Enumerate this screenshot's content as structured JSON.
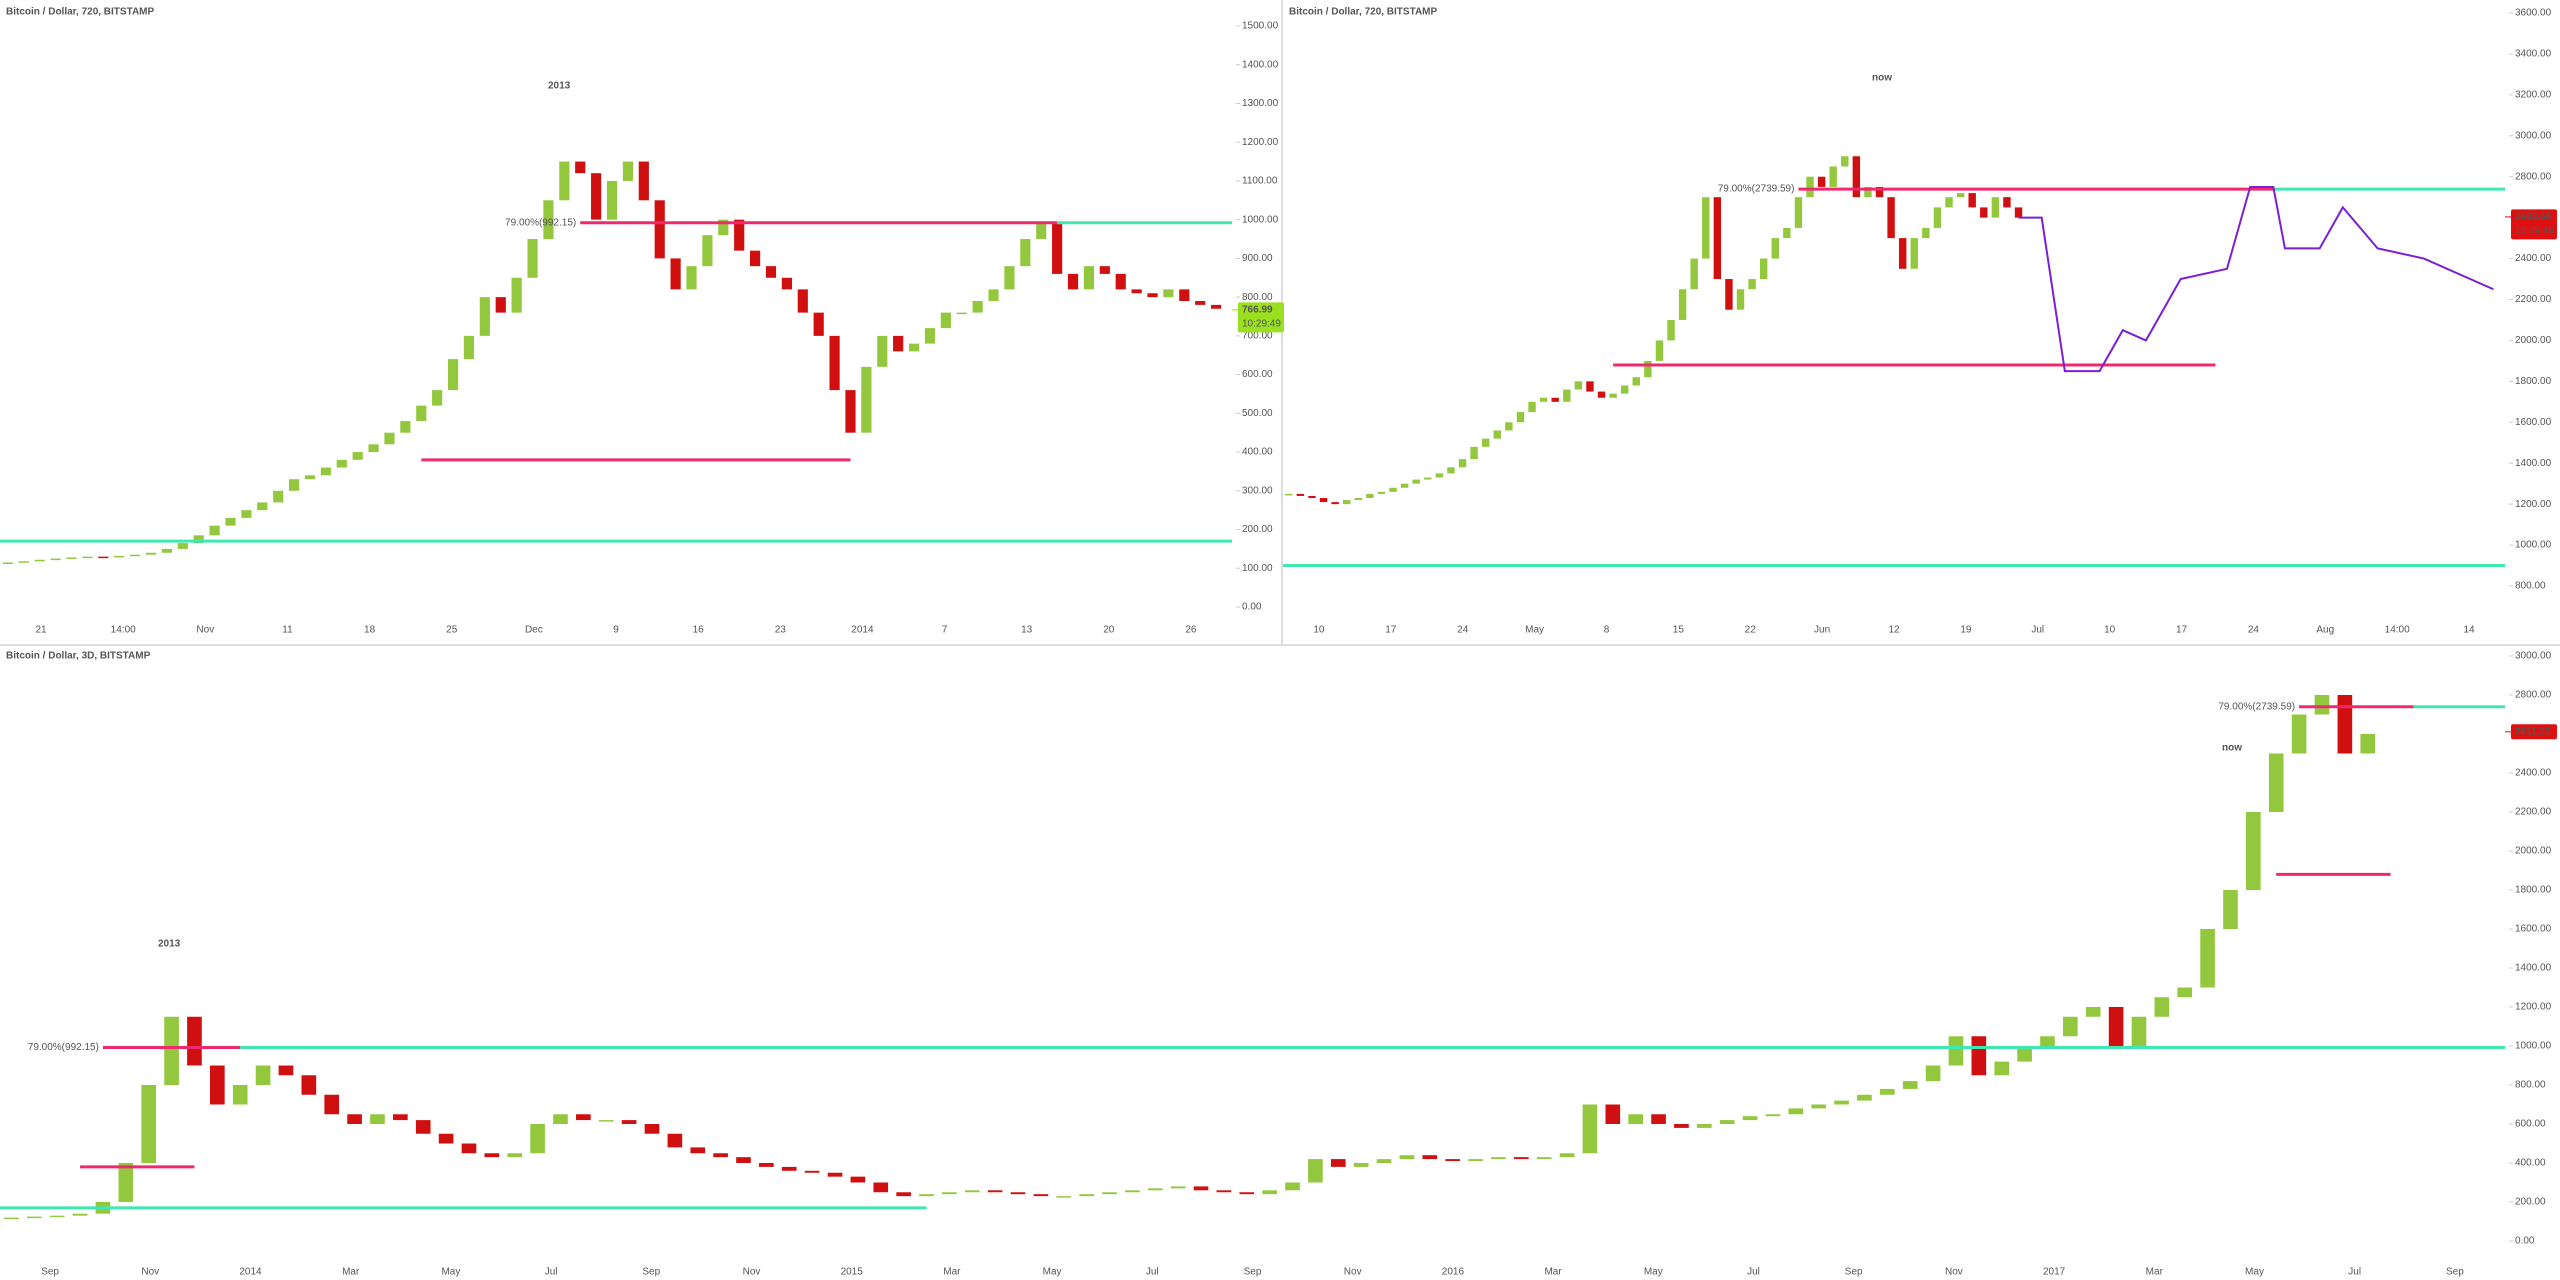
{
  "chart_data": [
    {
      "type": "candlestick",
      "title": "Bitcoin / Dollar, 720, BITSTAMP",
      "up_color": "#93c83e",
      "down_color": "#d01010",
      "values": [
        115,
        118,
        122,
        125,
        128,
        130,
        128,
        132,
        135,
        140,
        150,
        165,
        185,
        210,
        230,
        250,
        270,
        300,
        330,
        340,
        360,
        380,
        400,
        420,
        450,
        480,
        520,
        560,
        640,
        700,
        800,
        760,
        850,
        950,
        1050,
        1150,
        1120,
        1000,
        1100,
        1150,
        1050,
        900,
        820,
        880,
        960,
        1000,
        920,
        880,
        850,
        820,
        760,
        700,
        560,
        450,
        620,
        700,
        660,
        680,
        720,
        760,
        760,
        790,
        820,
        880,
        950,
        990,
        860,
        820,
        880,
        860,
        820,
        810,
        800,
        820,
        790,
        780,
        770
      ],
      "xlim": [
        -0.5,
        77
      ],
      "ylim": [
        0,
        1500
      ],
      "yticks": [
        {
          "value": 0,
          "label": "0.00"
        },
        {
          "value": 100,
          "label": "100.00"
        },
        {
          "value": 200,
          "label": "200.00"
        },
        {
          "value": 300,
          "label": "300.00"
        },
        {
          "value": 400,
          "label": "400.00"
        },
        {
          "value": 500,
          "label": "500.00"
        },
        {
          "value": 600,
          "label": "600.00"
        },
        {
          "value": 700,
          "label": "700.00"
        },
        {
          "value": 800,
          "label": "800.00"
        },
        {
          "value": 900,
          "label": "900.00"
        },
        {
          "value": 1000,
          "label": "1000.00"
        },
        {
          "value": 1100,
          "label": "1100.00"
        },
        {
          "value": 1200,
          "label": "1200.00"
        },
        {
          "value": 1300,
          "label": "1300.00"
        },
        {
          "value": 1400,
          "label": "1400.00"
        },
        {
          "value": 1500,
          "label": "1500.00"
        }
      ],
      "xtick_labels": [
        "21",
        "14:00",
        "Nov",
        "11",
        "18",
        "25",
        "Dec",
        "9",
        "16",
        "23",
        "2014",
        "7",
        "13",
        "20",
        "26"
      ],
      "lines": [
        {
          "value": 992.15,
          "color": "#f0286e",
          "x": [
            36,
            66
          ],
          "label": "79.00%(992.15)"
        },
        {
          "value": 992.15,
          "color": "#3ee8b0",
          "x": [
            66,
            77
          ]
        },
        {
          "value": 380,
          "color": "#f0286e",
          "x": [
            26,
            53
          ]
        },
        {
          "value": 170,
          "color": "#3ee8b0",
          "x": [
            -0.5,
            77
          ]
        }
      ],
      "annotations": [
        {
          "text": "2013",
          "color": "#f7931a"
        }
      ],
      "last_price": 766.99,
      "countdown": "10:29:49",
      "tag_color": "#9be01e"
    },
    {
      "type": "candlestick",
      "title": "Bitcoin / Dollar, 720, BITSTAMP",
      "up_color": "#93c83e",
      "down_color": "#d01010",
      "values": [
        1250,
        1240,
        1230,
        1210,
        1200,
        1220,
        1230,
        1250,
        1260,
        1280,
        1300,
        1320,
        1330,
        1350,
        1380,
        1420,
        1480,
        1520,
        1560,
        1600,
        1650,
        1700,
        1720,
        1700,
        1760,
        1800,
        1750,
        1720,
        1740,
        1780,
        1820,
        1900,
        2000,
        2100,
        2250,
        2400,
        2700,
        2300,
        2150,
        2250,
        2300,
        2400,
        2500,
        2550,
        2700,
        2800,
        2750,
        2850,
        2900,
        2700,
        2750,
        2700,
        2500,
        2350,
        2500,
        2550,
        2650,
        2700,
        2720,
        2650,
        2600,
        2700,
        2650,
        2600
      ],
      "xlim": [
        -0.5,
        105
      ],
      "ylim": [
        800,
        3600
      ],
      "yticks": [
        {
          "value": 800,
          "label": "800.00"
        },
        {
          "value": 1000,
          "label": "1000.00"
        },
        {
          "value": 1200,
          "label": "1200.00"
        },
        {
          "value": 1400,
          "label": "1400.00"
        },
        {
          "value": 1600,
          "label": "1600.00"
        },
        {
          "value": 1800,
          "label": "1800.00"
        },
        {
          "value": 2000,
          "label": "2000.00"
        },
        {
          "value": 2200,
          "label": "2200.00"
        },
        {
          "value": 2400,
          "label": "2400.00"
        },
        {
          "value": 2600,
          "label": "2600.00"
        },
        {
          "value": 2800,
          "label": "2800.00"
        },
        {
          "value": 3000,
          "label": "3000.00"
        },
        {
          "value": 3200,
          "label": "3200.00"
        },
        {
          "value": 3400,
          "label": "3400.00"
        },
        {
          "value": 3600,
          "label": "3600.00"
        }
      ],
      "xtick_labels": [
        "10",
        "17",
        "24",
        "May",
        "8",
        "15",
        "22",
        "Jun",
        "12",
        "19",
        "Jul",
        "10",
        "17",
        "24",
        "Aug",
        "14:00",
        "14"
      ],
      "lines": [
        {
          "value": 2739.59,
          "color": "#f0286e",
          "x": [
            44,
            85
          ],
          "label": "79.00%(2739.59)"
        },
        {
          "value": 2739.59,
          "color": "#3ee8b0",
          "x": [
            85,
            105
          ]
        },
        {
          "value": 1880,
          "color": "#f0286e",
          "x": [
            28,
            80
          ]
        },
        {
          "value": 900,
          "color": "#3ee8b0",
          "x": [
            -0.5,
            105
          ]
        }
      ],
      "projection": {
        "color": "#7b1fd4",
        "x": [
          63,
          65,
          67,
          68,
          70,
          72,
          74,
          77,
          81,
          83,
          85,
          86,
          89,
          91,
          94,
          98,
          104
        ],
        "values": [
          2600,
          2600,
          1850,
          1850,
          1850,
          2050,
          2000,
          2300,
          2350,
          2750,
          2750,
          2450,
          2450,
          2650,
          2450,
          2400,
          2250
        ]
      },
      "annotations": [
        {
          "text": "now",
          "color": "#9b1ee8"
        }
      ],
      "last_price": 2603.68,
      "countdown": "10:29:48",
      "tag_color": "#e01010"
    },
    {
      "type": "candlestick",
      "title": "Bitcoin / Dollar, 3D, BITSTAMP",
      "up_color": "#93c83e",
      "down_color": "#d01010",
      "values": [
        120,
        125,
        130,
        140,
        200,
        400,
        800,
        1150,
        900,
        700,
        800,
        900,
        850,
        750,
        650,
        600,
        650,
        620,
        550,
        500,
        450,
        430,
        450,
        600,
        650,
        620,
        620,
        600,
        550,
        480,
        450,
        430,
        400,
        380,
        360,
        350,
        330,
        300,
        250,
        230,
        240,
        250,
        260,
        250,
        240,
        230,
        230,
        240,
        250,
        260,
        270,
        280,
        260,
        250,
        240,
        260,
        300,
        420,
        380,
        400,
        420,
        440,
        420,
        410,
        420,
        430,
        420,
        430,
        450,
        700,
        600,
        650,
        600,
        580,
        600,
        620,
        640,
        650,
        680,
        700,
        720,
        750,
        780,
        820,
        900,
        1050,
        850,
        920,
        1000,
        1050,
        1150,
        1200,
        1000,
        1150,
        1250,
        1300,
        1600,
        1800,
        2200,
        2500,
        2700,
        2800,
        2500,
        2600
      ],
      "xlim": [
        -0.5,
        109
      ],
      "ylim": [
        0,
        3000
      ],
      "yticks": [
        {
          "value": 0,
          "label": "0.00"
        },
        {
          "value": 200,
          "label": "200.00"
        },
        {
          "value": 400,
          "label": "400.00"
        },
        {
          "value": 600,
          "label": "600.00"
        },
        {
          "value": 800,
          "label": "800.00"
        },
        {
          "value": 1000,
          "label": "1000.00"
        },
        {
          "value": 1200,
          "label": "1200.00"
        },
        {
          "value": 1400,
          "label": "1400.00"
        },
        {
          "value": 1600,
          "label": "1600.00"
        },
        {
          "value": 1800,
          "label": "1800.00"
        },
        {
          "value": 2000,
          "label": "2000.00"
        },
        {
          "value": 2200,
          "label": "2200.00"
        },
        {
          "value": 2400,
          "label": "2400.00"
        },
        {
          "value": 2600,
          "label": "2600.00"
        },
        {
          "value": 2800,
          "label": "2800.00"
        },
        {
          "value": 3000,
          "label": "3000.00"
        }
      ],
      "xtick_labels": [
        "Sep",
        "Nov",
        "2014",
        "Mar",
        "May",
        "Jul",
        "Sep",
        "Nov",
        "2015",
        "Mar",
        "May",
        "Jul",
        "Sep",
        "Nov",
        "2016",
        "Mar",
        "May",
        "Jul",
        "Sep",
        "Nov",
        "2017",
        "Mar",
        "May",
        "Jul",
        "Sep"
      ],
      "lines": [
        {
          "value": 992.15,
          "color": "#f0286e",
          "x": [
            4,
            10
          ],
          "label": "79.00%(992.15)"
        },
        {
          "value": 992.15,
          "color": "#3ee8b0",
          "x": [
            10,
            109
          ]
        },
        {
          "value": 380,
          "color": "#f0286e",
          "x": [
            3,
            8
          ]
        },
        {
          "value": 170,
          "color": "#3ee8b0",
          "x": [
            -0.5,
            40
          ]
        },
        {
          "value": 2739.59,
          "color": "#f0286e",
          "x": [
            100,
            105
          ],
          "label": "79.00%(2739.59)"
        },
        {
          "value": 2739.59,
          "color": "#3ee8b0",
          "x": [
            105,
            109
          ]
        },
        {
          "value": 1880,
          "color": "#f0286e",
          "x": [
            99,
            104
          ]
        }
      ],
      "annotations": [
        {
          "text": "2013",
          "color": "#f7931a"
        },
        {
          "text": "now",
          "color": "#9b1ee8"
        }
      ],
      "last_price": 2611.23,
      "tag_color": "#e01010"
    }
  ]
}
